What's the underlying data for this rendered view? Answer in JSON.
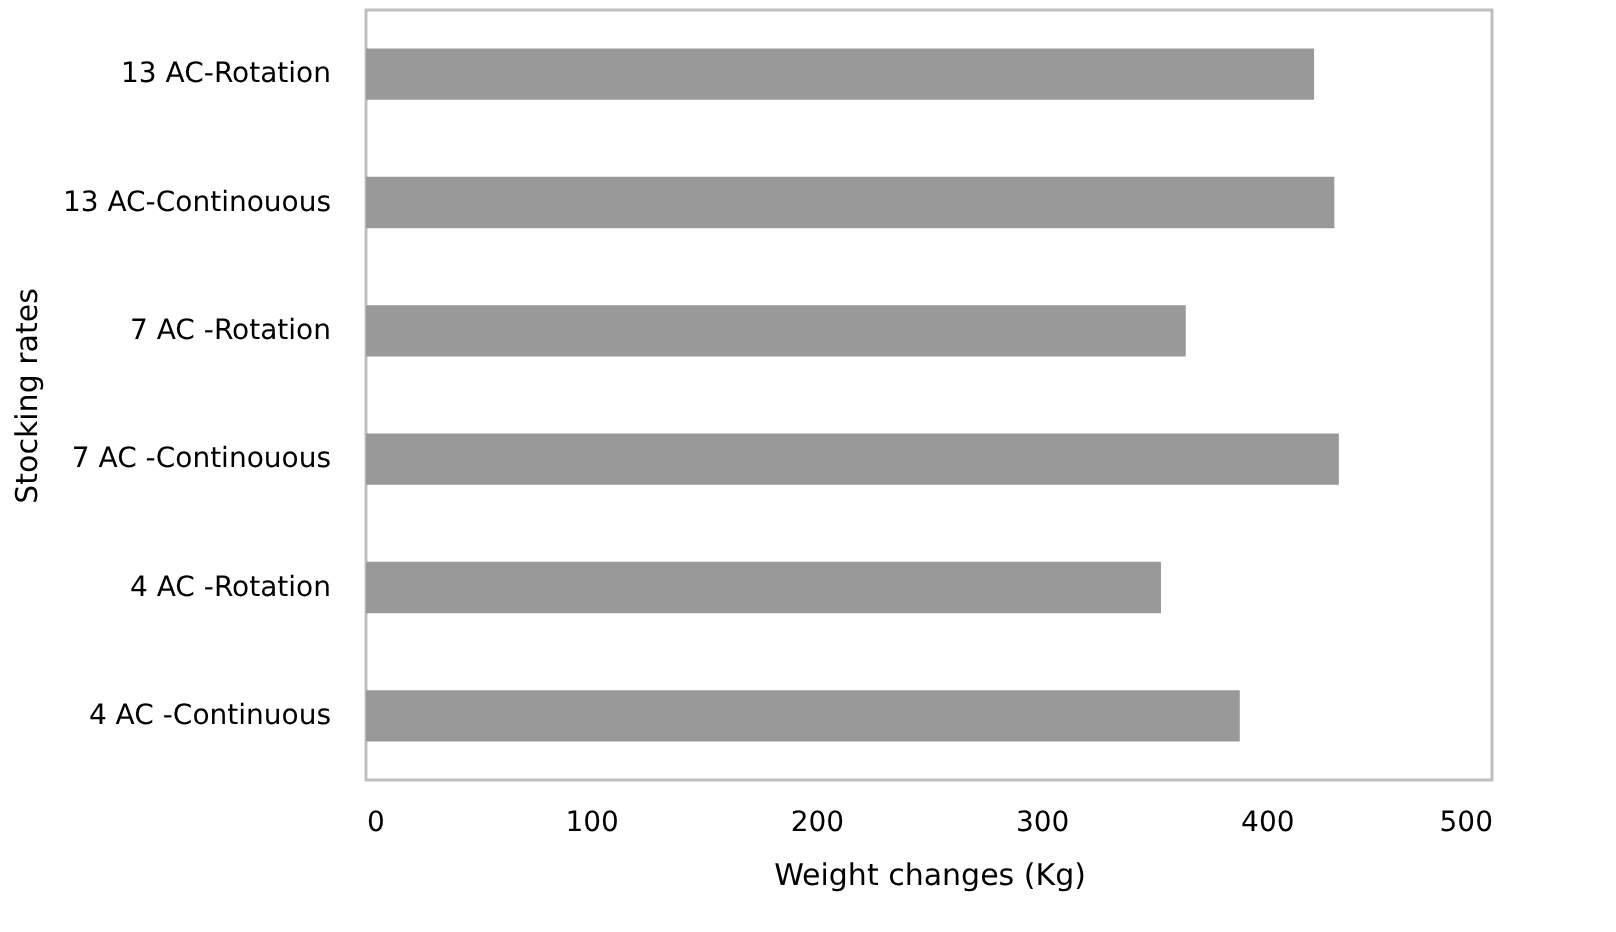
{
  "chart_data": {
    "type": "bar",
    "orientation": "horizontal",
    "xlabel": "Weight changes (Kg)",
    "ylabel": "Stocking rates",
    "categories": [
      "13 AC-Rotation",
      "13 AC-Continouous",
      "7 AC -Rotation",
      "7 AC -Continouous",
      "4 AC -Rotation",
      "4 AC -Continuous"
    ],
    "values": [
      421,
      430,
      364,
      432,
      353,
      388
    ],
    "color": "#999999",
    "xlim": [
      0,
      500
    ],
    "xticks": [
      0,
      100,
      200,
      300,
      400,
      500
    ],
    "grid": false
  }
}
